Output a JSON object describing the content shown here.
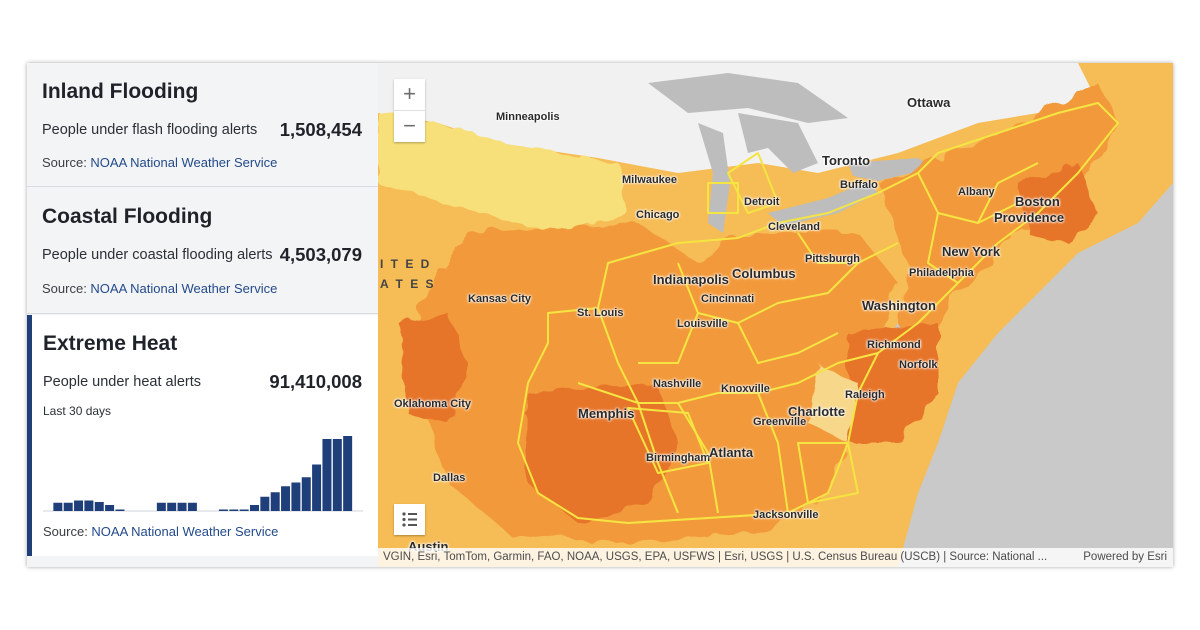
{
  "panels": [
    {
      "title": "Inland Flooding",
      "label": "People under flash flooding alerts",
      "value": "1,508,454",
      "source_prefix": "Source: ",
      "source_link": "NOAA National Weather Service"
    },
    {
      "title": "Coastal Flooding",
      "label": "People under coastal flooding alerts",
      "value": "4,503,079",
      "source_prefix": "Source: ",
      "source_link": "NOAA National Weather Service"
    },
    {
      "title": "Extreme Heat",
      "label": "People under heat alerts",
      "value": "91,410,008",
      "sub": "Last 30 days",
      "source_prefix": "Source: ",
      "source_link": "NOAA National Weather Service"
    }
  ],
  "chart_data": {
    "type": "bar",
    "title": "",
    "xlabel": "Last 30 days",
    "values": [
      0,
      0.11,
      0.11,
      0.14,
      0.14,
      0.12,
      0.08,
      0.02,
      0,
      0,
      0,
      0.11,
      0.11,
      0.11,
      0.11,
      0,
      0,
      0.02,
      0.02,
      0.02,
      0.08,
      0.19,
      0.25,
      0.33,
      0.38,
      0.45,
      0.62,
      0.96,
      0.96,
      1.0
    ],
    "ylim": [
      0,
      1
    ],
    "grid": false,
    "color": "#1e3f7a"
  },
  "map": {
    "zoom_in": "+",
    "zoom_out": "−",
    "legend_icon": "legend-list-icon",
    "attribution": "VGIN, Esri, TomTom, Garmin, FAO, NOAA, USGS, EPA, USFWS | Esri, USGS | U.S. Census Bureau (USCB) | Source: National ...",
    "powered": "Powered by Esri",
    "country_label_1": "I T E D",
    "country_label_2": "A T E S",
    "cities": [
      "Ottawa",
      "Minneapolis",
      "Toronto",
      "Milwaukee",
      "Buffalo",
      "Albany",
      "Detroit",
      "Boston",
      "Chicago",
      "Providence",
      "Cleveland",
      "New York",
      "Pittsburgh",
      "Philadelphia",
      "Indianapolis",
      "Columbus",
      "Kansas City",
      "Cincinnati",
      "Washington",
      "St. Louis",
      "Louisville",
      "Richmond",
      "Norfolk",
      "Nashville",
      "Knoxville",
      "Oklahoma City",
      "Raleigh",
      "Memphis",
      "Charlotte",
      "Greenville",
      "Birmingham",
      "Atlanta",
      "Dallas",
      "Jacksonville",
      "Austin"
    ],
    "colors": {
      "water": "#c9c9c9",
      "lakes": "#bdbdbd",
      "canada": "#f1f1f1",
      "pale": "#f7e07a",
      "light": "#f6bc55",
      "mid": "#f29a3a",
      "dark": "#e6742a",
      "outline": "#f4e542"
    }
  }
}
